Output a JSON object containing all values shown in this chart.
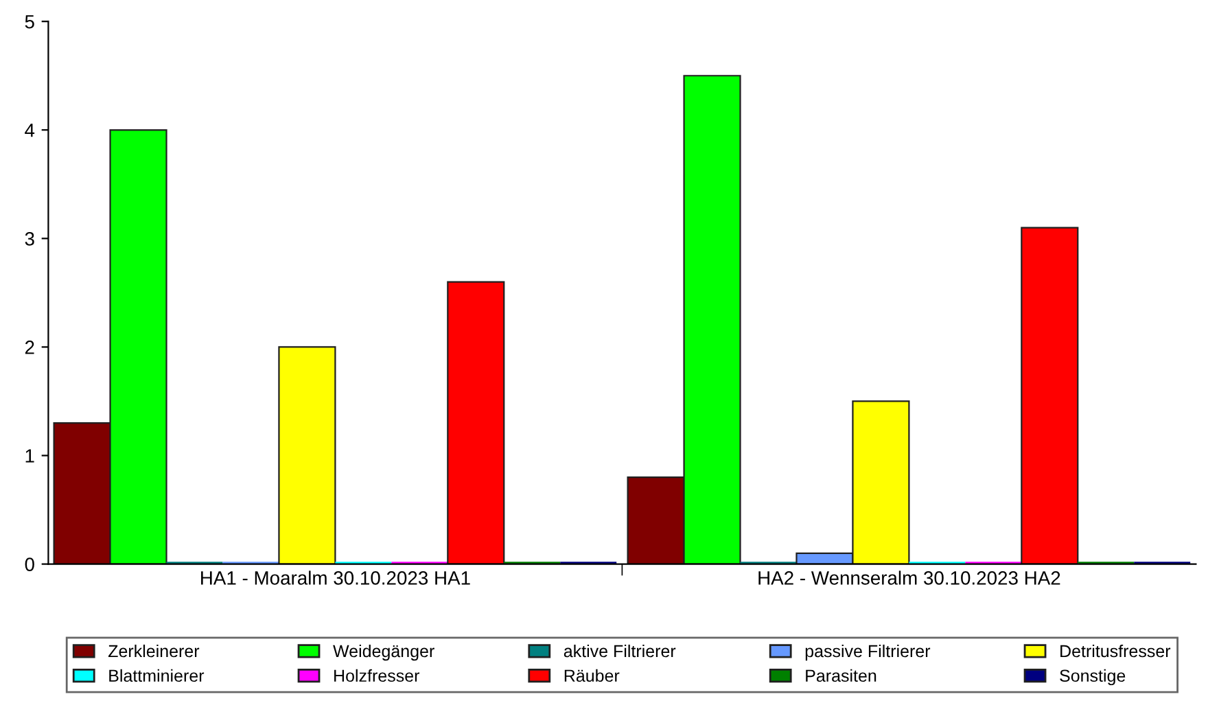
{
  "chart_data": {
    "type": "bar",
    "categories": [
      "HA1 - Moaralm 30.10.2023 HA1",
      "HA2 - Wennseralm 30.10.2023 HA2"
    ],
    "series": [
      {
        "name": "Zerkleinerer",
        "color": "#800000",
        "values": [
          1.3,
          0.8
        ]
      },
      {
        "name": "Weidegänger",
        "color": "#00ff00",
        "values": [
          4.0,
          4.5
        ]
      },
      {
        "name": "aktive Filtrierer",
        "color": "#008080",
        "values": [
          0,
          0
        ]
      },
      {
        "name": "passive Filtrierer",
        "color": "#6699ff",
        "values": [
          0,
          0.1
        ]
      },
      {
        "name": "Detritusfresser",
        "color": "#ffff00",
        "values": [
          2.0,
          1.5
        ]
      },
      {
        "name": "Blattminierer",
        "color": "#00ffff",
        "values": [
          0,
          0
        ]
      },
      {
        "name": "Holzfresser",
        "color": "#ff00ff",
        "values": [
          0,
          0
        ]
      },
      {
        "name": "Räuber",
        "color": "#ff0000",
        "values": [
          2.6,
          3.1
        ]
      },
      {
        "name": "Parasiten",
        "color": "#008000",
        "values": [
          0,
          0
        ]
      },
      {
        "name": "Sonstige",
        "color": "#000080",
        "values": [
          0,
          0
        ]
      }
    ],
    "ylim": [
      0,
      5
    ],
    "yticks": [
      0,
      1,
      2,
      3,
      4,
      5
    ],
    "grid": false,
    "legend": "bottom"
  }
}
